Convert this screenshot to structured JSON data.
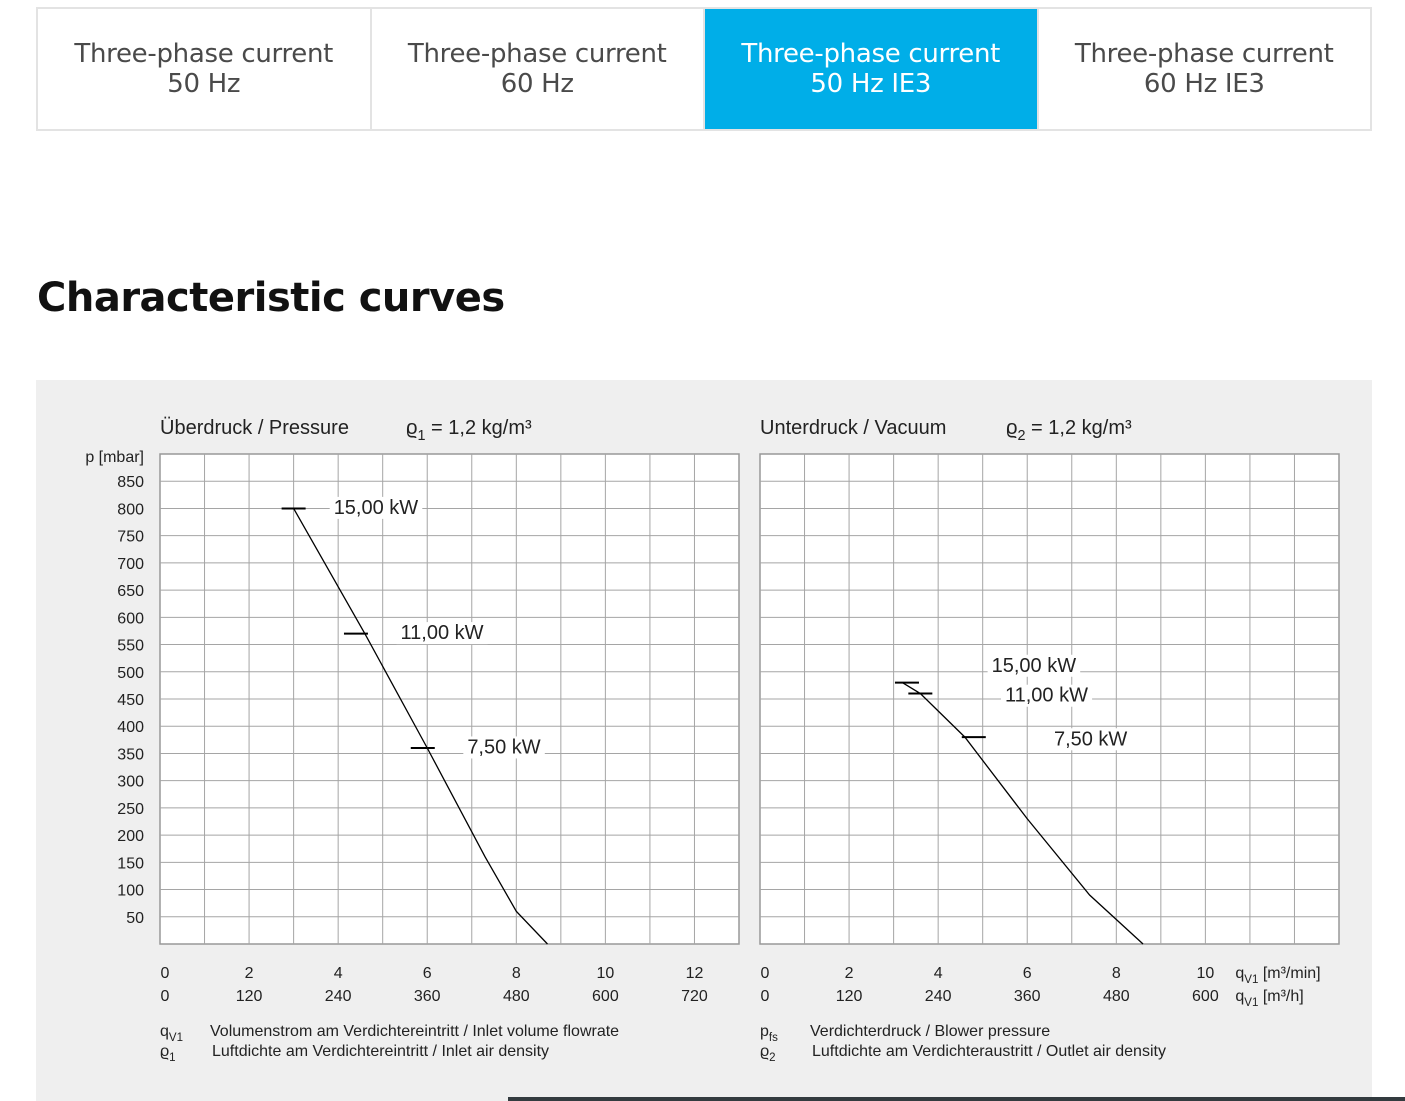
{
  "tabs": [
    {
      "line1": "Three-phase current",
      "line2": "50 Hz",
      "active": false
    },
    {
      "line1": "Three-phase current",
      "line2": "60 Hz",
      "active": false
    },
    {
      "line1": "Three-phase current",
      "line2": "50 Hz IE3",
      "active": true
    },
    {
      "line1": "Three-phase current",
      "line2": "60 Hz IE3",
      "active": false
    }
  ],
  "section_title": "Characteristic curves",
  "chart_data": [
    {
      "type": "line",
      "title": "Überdruck / Pressure",
      "density_symbol": "ϱ",
      "density_sub": "1",
      "density_value": "= 1,2 kg/m³",
      "ylabel": "p [mbar]",
      "ylim": [
        0,
        900
      ],
      "yticks": [
        850,
        800,
        750,
        700,
        650,
        600,
        550,
        500,
        450,
        400,
        350,
        300,
        250,
        200,
        150,
        100,
        50
      ],
      "xlim": [
        0,
        13
      ],
      "x_ticks_min": [
        "0",
        "2",
        "4",
        "6",
        "8",
        "10",
        "12"
      ],
      "x_ticks_min_pos": [
        0,
        2,
        4,
        6,
        8,
        10,
        12
      ],
      "x_ticks_h": [
        "0",
        "120",
        "240",
        "360",
        "480",
        "600",
        "720"
      ],
      "series": [
        {
          "x": [
            3.0,
            4.6,
            6.0,
            7.3,
            8.0,
            8.7
          ],
          "y": [
            800,
            570,
            360,
            160,
            60,
            0
          ]
        }
      ],
      "markers": [
        {
          "label": "15,00 kW",
          "x": 3.0,
          "y": 800,
          "label_x": 3.9,
          "label_y": 790
        },
        {
          "label": "11,00 kW",
          "x": 4.4,
          "y": 570,
          "label_x": 5.4,
          "label_y": 560
        },
        {
          "label": "7,50 kW",
          "x": 5.9,
          "y": 360,
          "label_x": 6.9,
          "label_y": 350
        }
      ],
      "legend_lines": [
        {
          "symbol": "q",
          "sub": "V1",
          "text": "Volumenstrom am Verdichtereintritt / Inlet volume flowrate"
        },
        {
          "symbol": "ϱ",
          "sub": "1",
          "text": "Luftdichte am Verdichtereintritt / Inlet air density"
        }
      ]
    },
    {
      "type": "line",
      "title": "Unterdruck / Vacuum",
      "density_symbol": "ϱ",
      "density_sub": "2",
      "density_value": "= 1,2 kg/m³",
      "ylim": [
        0,
        900
      ],
      "xlim": [
        0,
        13
      ],
      "x_ticks_min": [
        "0",
        "2",
        "4",
        "6",
        "8",
        "10"
      ],
      "x_ticks_min_pos": [
        0,
        2,
        4,
        6,
        8,
        10
      ],
      "x_ticks_h": [
        "0",
        "120",
        "240",
        "360",
        "480",
        "600"
      ],
      "x_unit_min": "[m³/min]",
      "x_unit_h": "[m³/h]",
      "x_unit_symbol": "q",
      "x_unit_sub": "V1",
      "series": [
        {
          "x": [
            3.2,
            3.6,
            4.6,
            6.0,
            7.4,
            8.6
          ],
          "y": [
            480,
            460,
            380,
            230,
            90,
            0
          ]
        }
      ],
      "markers": [
        {
          "label": "15,00 kW",
          "x": 3.3,
          "y": 480,
          "label_x": 5.2,
          "label_y": 500
        },
        {
          "label": "11,00 kW",
          "x": 3.6,
          "y": 460,
          "label_x": 5.5,
          "label_y": 445
        },
        {
          "label": "7,50 kW",
          "x": 4.8,
          "y": 380,
          "label_x": 6.6,
          "label_y": 365
        }
      ],
      "legend_lines": [
        {
          "symbol": "p",
          "sub": "fs",
          "text": "Verdichterdruck / Blower pressure"
        },
        {
          "symbol": "ϱ",
          "sub": "2",
          "text": "Luftdichte am Verdichteraustritt / Outlet air density"
        }
      ]
    }
  ]
}
